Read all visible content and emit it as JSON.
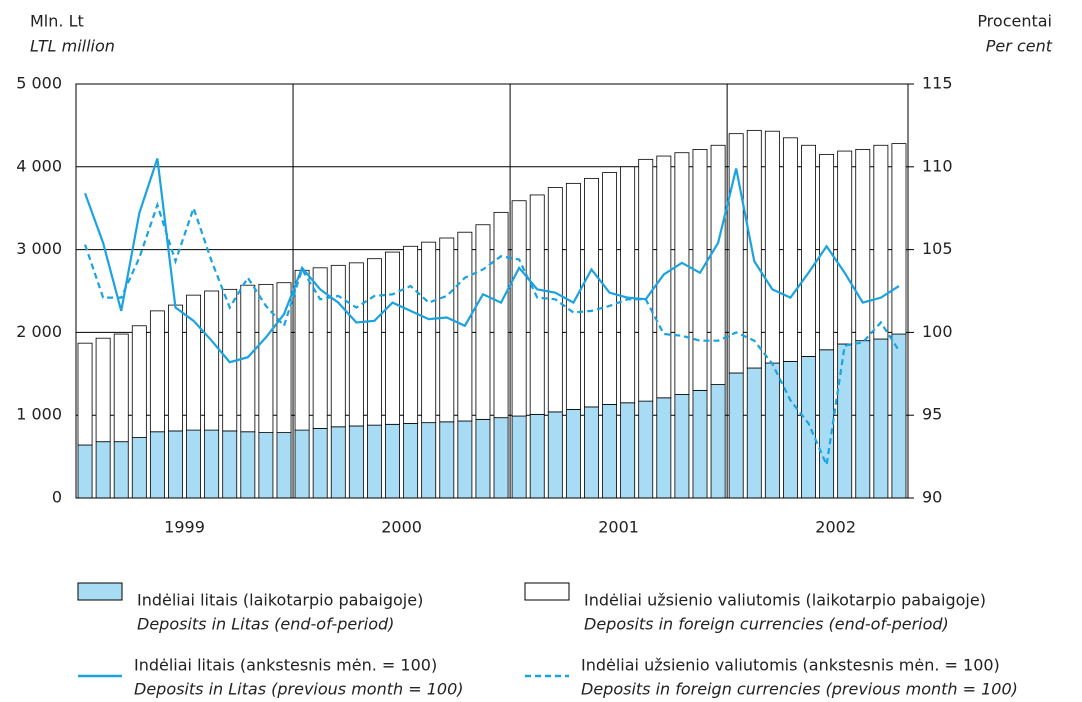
{
  "chart_data": {
    "type": "bar-line",
    "y_label": "Mln. Lt",
    "y_label_en": "LTL million",
    "y2_label": "Procentai",
    "y2_label_en": "Per cent",
    "categories": [
      null,
      null,
      null,
      null,
      null,
      null,
      "1999",
      null,
      null,
      null,
      null,
      null,
      null,
      null,
      null,
      null,
      null,
      null,
      "2000",
      null,
      null,
      null,
      null,
      null,
      null,
      null,
      null,
      null,
      null,
      null,
      "2001",
      null,
      null,
      null,
      null,
      null,
      null,
      null,
      null,
      null,
      null,
      null,
      "2002",
      null,
      null,
      null
    ],
    "ylim": [
      0,
      5000
    ],
    "yticks": [
      0,
      {
        "value": 1000,
        "label": "1 000"
      },
      {
        "value": 2000,
        "label": "2 000"
      },
      {
        "value": 3000,
        "label": "3 000"
      },
      {
        "value": 4000,
        "label": "4 000"
      },
      {
        "value": 5000,
        "label": "5 000"
      }
    ],
    "y2lim": [
      90,
      115
    ],
    "y2ticks": [
      90,
      95,
      100,
      105,
      110,
      115
    ],
    "grid": true,
    "series": [
      {
        "name": "Indėliai litais (laikotarpio pabaigoje)",
        "name_en": "Deposits in Litas (end-of-period)",
        "kind": "bar",
        "color": "#a8dcf5",
        "values": [
          640,
          680,
          680,
          730,
          800,
          810,
          820,
          820,
          810,
          800,
          790,
          790,
          820,
          840,
          860,
          870,
          880,
          890,
          900,
          910,
          920,
          930,
          950,
          970,
          990,
          1010,
          1040,
          1070,
          1100,
          1130,
          1150,
          1170,
          1210,
          1250,
          1300,
          1370,
          1510,
          1570,
          1630,
          1650,
          1710,
          1790,
          1860,
          1900,
          1920,
          1980
        ]
      },
      {
        "name": "Indėliai užsienio valiutomis (laikotarpio pabaigoje)",
        "name_en": "Deposits in foreign currencies (end-of-period)",
        "kind": "bar",
        "color": "#ffffff",
        "values": [
          1230,
          1250,
          1300,
          1350,
          1460,
          1520,
          1630,
          1680,
          1710,
          1770,
          1790,
          1810,
          1930,
          1940,
          1950,
          1970,
          2010,
          2080,
          2140,
          2180,
          2220,
          2280,
          2350,
          2480,
          2600,
          2650,
          2710,
          2730,
          2760,
          2800,
          2850,
          2920,
          2920,
          2920,
          2910,
          2890,
          2890,
          2870,
          2800,
          2700,
          2550,
          2360,
          2330,
          2310,
          2340,
          2300
        ]
      },
      {
        "name": "Indėliai litais (ankstesnis mėn. = 100)",
        "name_en": "Deposits in Litas (previous month = 100)",
        "kind": "line",
        "axis": "y2",
        "color": "#1aa3e0",
        "dash": false,
        "values": [
          108.4,
          105.4,
          101.3,
          107.2,
          110.5,
          101.5,
          100.7,
          99.5,
          98.2,
          98.5,
          99.7,
          101.1,
          103.9,
          102.6,
          101.8,
          100.6,
          100.7,
          101.8,
          101.3,
          100.8,
          100.9,
          100.4,
          102.3,
          101.8,
          103.9,
          102.6,
          102.4,
          101.8,
          103.8,
          102.4,
          102.1,
          102.0,
          103.5,
          104.2,
          103.6,
          105.4,
          109.9,
          104.3,
          102.6,
          102.1,
          103.6,
          105.2,
          103.6,
          101.8,
          102.1,
          102.8
        ]
      },
      {
        "name": "Indėliai užsienio valiutomis (ankstesnis mėn. = 100)",
        "name_en": "Deposits in foreign currencies (previous month = 100)",
        "kind": "line",
        "axis": "y2",
        "color": "#1aa3e0",
        "dash": true,
        "values": [
          105.3,
          102.1,
          102.1,
          104.5,
          107.7,
          104.3,
          107.5,
          104.3,
          101.5,
          103.3,
          101.6,
          100.4,
          103.8,
          102.0,
          102.2,
          101.5,
          102.2,
          102.3,
          102.8,
          101.8,
          102.2,
          103.3,
          103.8,
          104.6,
          104.4,
          102.1,
          102.0,
          101.2,
          101.3,
          101.6,
          102.0,
          102.0,
          99.9,
          99.8,
          99.5,
          99.5,
          100.0,
          99.5,
          98.1,
          95.9,
          94.5,
          92.0,
          99.2,
          99.4,
          100.6,
          98.9
        ]
      }
    ]
  }
}
